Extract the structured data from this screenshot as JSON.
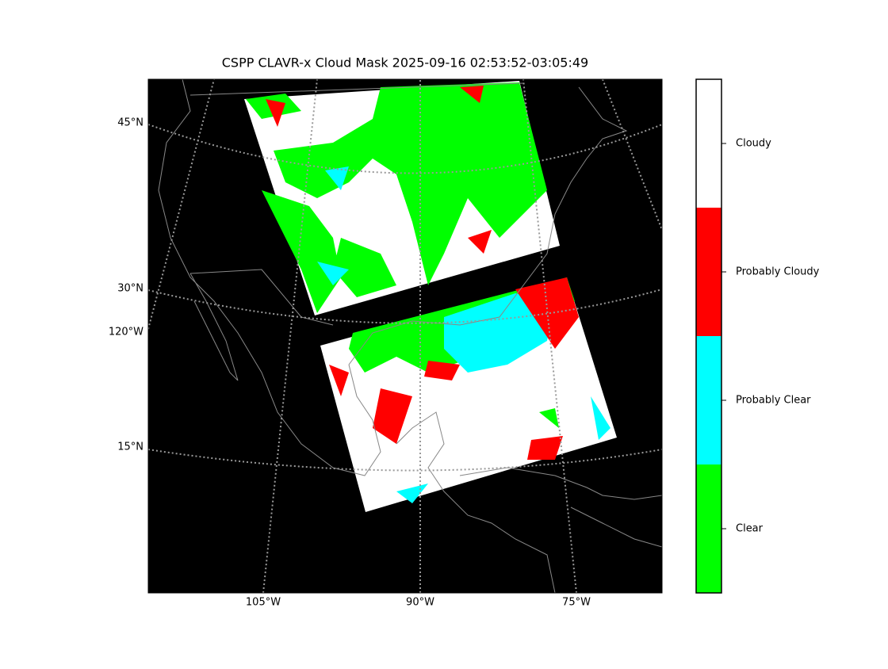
{
  "title": "CSPP CLAVR-x Cloud Mask 2025-09-16 02:53:52-03:05:49",
  "map": {
    "lat_labels": [
      "45°N",
      "30°N",
      "15°N"
    ],
    "lon_labels": [
      "105°W",
      "90°W",
      "75°W"
    ],
    "edge_lon_label": "120°W"
  },
  "colorbar": {
    "classes": [
      {
        "label": "Cloudy",
        "color": "#ffffff"
      },
      {
        "label": "Probably Cloudy",
        "color": "#ff0000"
      },
      {
        "label": "Probably Clear",
        "color": "#00ffff"
      },
      {
        "label": "Clear",
        "color": "#00ff00"
      }
    ]
  }
}
